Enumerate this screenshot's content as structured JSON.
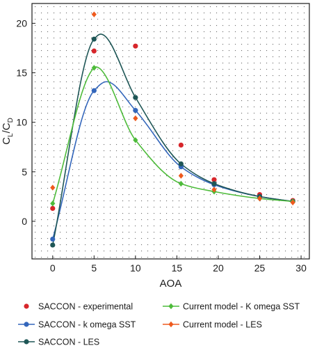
{
  "chart_data": {
    "type": "line",
    "xlabel": "AOA",
    "ylabel_main": "C",
    "ylabel_sub1": "L",
    "ylabel_sep": "/C",
    "ylabel_sub2": "D",
    "xlim": [
      -2.5,
      31
    ],
    "ylim": [
      -3.8,
      22
    ],
    "xticks": [
      0,
      5,
      10,
      15,
      20,
      25,
      30
    ],
    "yticks": [
      0,
      5,
      10,
      15,
      20
    ],
    "grid": "dotted",
    "legend_position": "bottom",
    "series": [
      {
        "name": "SACCON - experimental",
        "color": "#d7262b",
        "style": "markers",
        "x": [
          0,
          5,
          10,
          15.5,
          19.5,
          25,
          29
        ],
        "y": [
          1.3,
          17.2,
          17.7,
          7.7,
          4.2,
          2.7,
          2.1
        ]
      },
      {
        "name": "SACCON - k omega SST",
        "color": "#3366bb",
        "style": "smooth",
        "x": [
          0,
          5,
          10,
          15.5,
          19.5,
          25,
          29
        ],
        "y": [
          -1.8,
          13.2,
          11.2,
          5.5,
          3.7,
          2.5,
          2.0
        ],
        "peak": [
          6.5,
          14.1
        ]
      },
      {
        "name": "SACCON - LES",
        "color": "#1e5656",
        "style": "smooth",
        "x": [
          0,
          5,
          10,
          15.5,
          19.5,
          25,
          29
        ],
        "y": [
          -2.4,
          18.4,
          12.5,
          5.8,
          3.8,
          2.5,
          2.0
        ],
        "peak": [
          5.8,
          18.9
        ]
      },
      {
        "name": "Current model - K omega SST",
        "color": "#4dbb3a",
        "style": "smooth",
        "x": [
          0,
          5,
          10,
          15.5,
          19.5,
          25,
          29
        ],
        "y": [
          1.8,
          15.5,
          8.2,
          3.8,
          3.0,
          2.3,
          2.0
        ],
        "peak": [
          5.2,
          15.6
        ]
      },
      {
        "name": "Current model - LES",
        "color": "#ee5a1e",
        "style": "smooth",
        "x": [
          0,
          5,
          10,
          15.5,
          19.5,
          25,
          29
        ],
        "y": [
          3.4,
          20.9,
          10.4,
          4.6,
          3.2,
          2.3,
          1.9
        ],
        "peak": [
          5.0,
          20.9
        ]
      }
    ]
  }
}
